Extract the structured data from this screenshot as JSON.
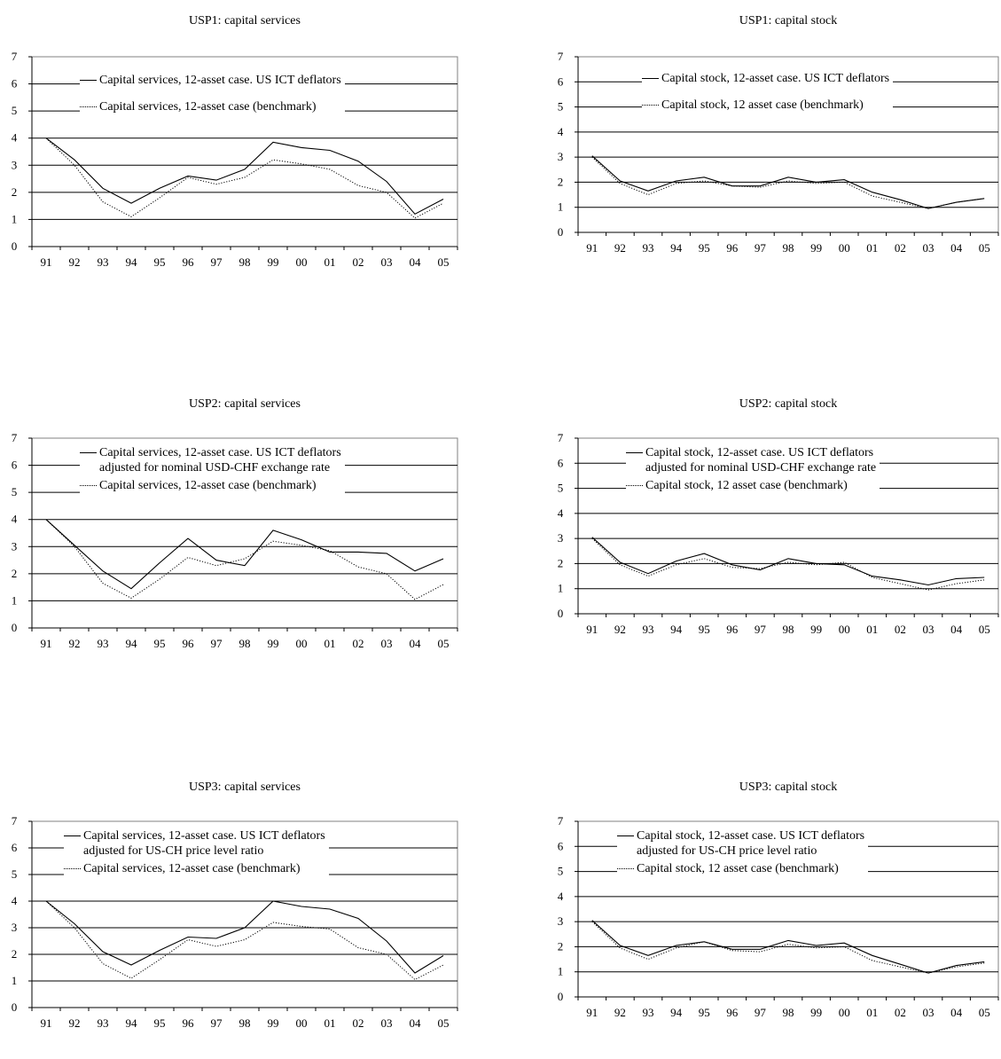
{
  "chart_data": [
    {
      "type": "line",
      "title": "USP1: capital services",
      "categories": [
        "91",
        "92",
        "93",
        "94",
        "95",
        "96",
        "97",
        "98",
        "99",
        "00",
        "01",
        "02",
        "03",
        "04",
        "05"
      ],
      "ylim": [
        0,
        7
      ],
      "yticks": [
        "0",
        "1",
        "2",
        "3",
        "4",
        "5",
        "6",
        "7"
      ],
      "grid": true,
      "series": [
        {
          "name": "Capital services, 12-asset case. US ICT deflators",
          "name_line2": "",
          "style": "solid",
          "values": [
            4.0,
            3.2,
            2.15,
            1.6,
            2.15,
            2.6,
            2.45,
            2.85,
            3.85,
            3.65,
            3.55,
            3.15,
            2.4,
            1.2,
            1.75
          ]
        },
        {
          "name": "Capital services, 12-asset case (benchmark)",
          "style": "dotted",
          "values": [
            4.0,
            3.0,
            1.65,
            1.1,
            1.8,
            2.55,
            2.3,
            2.55,
            3.2,
            3.05,
            2.85,
            2.25,
            2.0,
            1.05,
            1.6
          ]
        }
      ]
    },
    {
      "type": "line",
      "title": "USP1: capital stock",
      "categories": [
        "91",
        "92",
        "93",
        "94",
        "95",
        "96",
        "97",
        "98",
        "99",
        "00",
        "01",
        "02",
        "03",
        "04",
        "05"
      ],
      "ylim": [
        0,
        7
      ],
      "yticks": [
        "0",
        "1",
        "2",
        "3",
        "4",
        "5",
        "6",
        "7"
      ],
      "grid": true,
      "series": [
        {
          "name": "Capital stock, 12-asset case. US ICT deflators",
          "name_line2": "",
          "style": "solid",
          "values": [
            3.05,
            2.05,
            1.65,
            2.05,
            2.2,
            1.85,
            1.85,
            2.2,
            2.0,
            2.1,
            1.6,
            1.3,
            0.95,
            1.2,
            1.35
          ]
        },
        {
          "name": "Capital stock, 12 asset case (benchmark)",
          "style": "dotted",
          "values": [
            3.0,
            1.95,
            1.5,
            1.95,
            2.05,
            1.85,
            1.8,
            2.05,
            1.95,
            2.0,
            1.45,
            1.2,
            0.95,
            1.2,
            1.35
          ]
        }
      ]
    },
    {
      "type": "line",
      "title": "USP2: capital services",
      "categories": [
        "91",
        "92",
        "93",
        "94",
        "95",
        "96",
        "97",
        "98",
        "99",
        "00",
        "01",
        "02",
        "03",
        "04",
        "05"
      ],
      "ylim": [
        0,
        7
      ],
      "yticks": [
        "0",
        "1",
        "2",
        "3",
        "4",
        "5",
        "6",
        "7"
      ],
      "grid": true,
      "series": [
        {
          "name": "Capital services, 12-asset case. US ICT deflators",
          "name_line2": "adjusted for nominal USD-CHF exchange rate",
          "style": "solid",
          "values": [
            4.0,
            3.05,
            2.1,
            1.45,
            2.4,
            3.3,
            2.5,
            2.3,
            3.6,
            3.25,
            2.8,
            2.8,
            2.75,
            2.1,
            2.55
          ]
        },
        {
          "name": "Capital services, 12-asset case (benchmark)",
          "style": "dotted",
          "values": [
            4.0,
            3.0,
            1.65,
            1.1,
            1.8,
            2.6,
            2.3,
            2.55,
            3.2,
            3.05,
            2.85,
            2.25,
            2.0,
            1.05,
            1.6
          ]
        }
      ]
    },
    {
      "type": "line",
      "title": "USP2: capital stock",
      "categories": [
        "91",
        "92",
        "93",
        "94",
        "95",
        "96",
        "97",
        "98",
        "99",
        "00",
        "01",
        "02",
        "03",
        "04",
        "05"
      ],
      "ylim": [
        0,
        7
      ],
      "yticks": [
        "0",
        "1",
        "2",
        "3",
        "4",
        "5",
        "6",
        "7"
      ],
      "grid": true,
      "series": [
        {
          "name": "Capital stock, 12-asset case. US ICT deflators",
          "name_line2": "adjusted for nominal USD-CHF exchange rate",
          "style": "solid",
          "values": [
            3.05,
            2.05,
            1.6,
            2.1,
            2.4,
            1.95,
            1.75,
            2.2,
            2.0,
            1.95,
            1.5,
            1.35,
            1.15,
            1.4,
            1.45
          ]
        },
        {
          "name": "Capital stock, 12 asset case (benchmark)",
          "style": "dotted",
          "values": [
            3.0,
            1.95,
            1.5,
            1.95,
            2.2,
            1.85,
            1.8,
            2.05,
            1.95,
            2.05,
            1.45,
            1.2,
            0.95,
            1.2,
            1.35
          ]
        }
      ]
    },
    {
      "type": "line",
      "title": "USP3: capital services",
      "categories": [
        "91",
        "92",
        "93",
        "94",
        "95",
        "96",
        "97",
        "98",
        "99",
        "00",
        "01",
        "02",
        "03",
        "04",
        "05"
      ],
      "ylim": [
        0,
        7
      ],
      "yticks": [
        "0",
        "1",
        "2",
        "3",
        "4",
        "5",
        "6",
        "7"
      ],
      "grid": true,
      "series": [
        {
          "name": "Capital services, 12-asset case. US ICT deflators",
          "name_line2": "adjusted for US-CH price level ratio",
          "style": "solid",
          "values": [
            4.0,
            3.15,
            2.1,
            1.6,
            2.15,
            2.65,
            2.6,
            3.0,
            4.0,
            3.8,
            3.7,
            3.35,
            2.5,
            1.3,
            1.95
          ]
        },
        {
          "name": "Capital services, 12-asset case (benchmark)",
          "style": "dotted",
          "values": [
            4.0,
            3.0,
            1.65,
            1.1,
            1.8,
            2.55,
            2.3,
            2.55,
            3.2,
            3.05,
            2.95,
            2.25,
            2.0,
            1.05,
            1.6
          ]
        }
      ]
    },
    {
      "type": "line",
      "title": "USP3: capital stock",
      "categories": [
        "91",
        "92",
        "93",
        "94",
        "95",
        "96",
        "97",
        "98",
        "99",
        "00",
        "01",
        "02",
        "03",
        "04",
        "05"
      ],
      "ylim": [
        0,
        7
      ],
      "yticks": [
        "0",
        "1",
        "2",
        "3",
        "4",
        "5",
        "6",
        "7"
      ],
      "grid": true,
      "series": [
        {
          "name": "Capital stock, 12-asset case. US ICT deflators",
          "name_line2": "adjusted for US-CH price level ratio",
          "style": "solid",
          "values": [
            3.05,
            2.05,
            1.65,
            2.05,
            2.2,
            1.9,
            1.9,
            2.25,
            2.05,
            2.15,
            1.65,
            1.3,
            0.95,
            1.25,
            1.4
          ]
        },
        {
          "name": "Capital stock, 12 asset case (benchmark)",
          "style": "dotted",
          "values": [
            3.0,
            1.95,
            1.5,
            1.95,
            2.2,
            1.85,
            1.8,
            2.1,
            1.95,
            2.0,
            1.45,
            1.2,
            0.95,
            1.2,
            1.35
          ]
        }
      ]
    }
  ]
}
